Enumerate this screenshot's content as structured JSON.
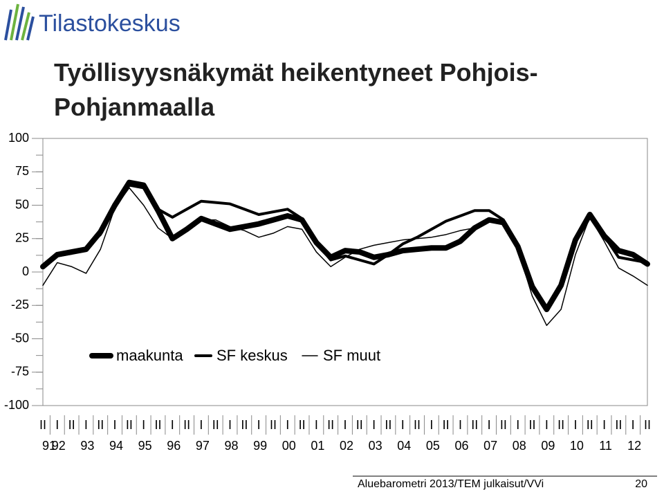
{
  "logo_text": "Tilastokeskus",
  "footer": {
    "source": "Aluebarometri 2013/TEM julkaisut/VVi",
    "page": "20"
  },
  "chart_data": {
    "type": "line",
    "title": "Työllisyysnäkymät heikentyneet Pohjois-Pohjanmaalla",
    "categories": [
      "II",
      "I",
      "II",
      "I",
      "II",
      "I",
      "II",
      "I",
      "II",
      "I",
      "II",
      "I",
      "II",
      "I",
      "II",
      "I",
      "II",
      "I",
      "II",
      "I",
      "II",
      "I",
      "II",
      "I",
      "II",
      "I",
      "II",
      "I",
      "II",
      "I",
      "II",
      "I",
      "II",
      "I",
      "II",
      "I",
      "II",
      "I",
      "II",
      "I",
      "II",
      "I",
      "II"
    ],
    "year_labels": [
      "91",
      "92",
      "93",
      "94",
      "95",
      "96",
      "97",
      "98",
      "99",
      "00",
      "01",
      "02",
      "03",
      "04",
      "05",
      "06",
      "07",
      "08",
      "09",
      "10",
      "11",
      "12"
    ],
    "ylim": [
      -100,
      100
    ],
    "yticks": [
      -100,
      -75,
      -50,
      -25,
      0,
      25,
      50,
      75,
      100
    ],
    "legend": "inside-bottom-left",
    "series": [
      {
        "name": "maakunta",
        "color": "#000000",
        "values": [
          4,
          13,
          15,
          17,
          30,
          50,
          67,
          65,
          46,
          25,
          32,
          40,
          36,
          32,
          34,
          36,
          39,
          42,
          39,
          22,
          11,
          16,
          15,
          11,
          13,
          16,
          17,
          18,
          18,
          23,
          33,
          39,
          37,
          19,
          -11,
          -28,
          -10,
          24,
          43,
          27,
          16,
          13,
          6
        ]
      },
      {
        "name": "SF keskus",
        "color": "#000000",
        "values": [
          4,
          12,
          14,
          18,
          28,
          48,
          65,
          63,
          47,
          41,
          47,
          53,
          52,
          51,
          47,
          43,
          45,
          47,
          40,
          22,
          9,
          12,
          9,
          6,
          13,
          21,
          26,
          32,
          38,
          42,
          46,
          46,
          39,
          20,
          -9,
          -28,
          -10,
          25,
          44,
          27,
          11,
          9,
          7
        ]
      },
      {
        "name": "SF muut",
        "color": "#000000",
        "values": [
          -10,
          7,
          4,
          -1,
          17,
          48,
          63,
          50,
          33,
          25,
          33,
          39,
          39,
          34,
          31,
          26,
          29,
          34,
          32,
          15,
          4,
          11,
          17,
          20,
          22,
          24,
          25,
          26,
          28,
          31,
          33,
          38,
          38,
          17,
          -18,
          -40,
          -28,
          13,
          41,
          23,
          3,
          -3,
          -10
        ]
      }
    ]
  }
}
